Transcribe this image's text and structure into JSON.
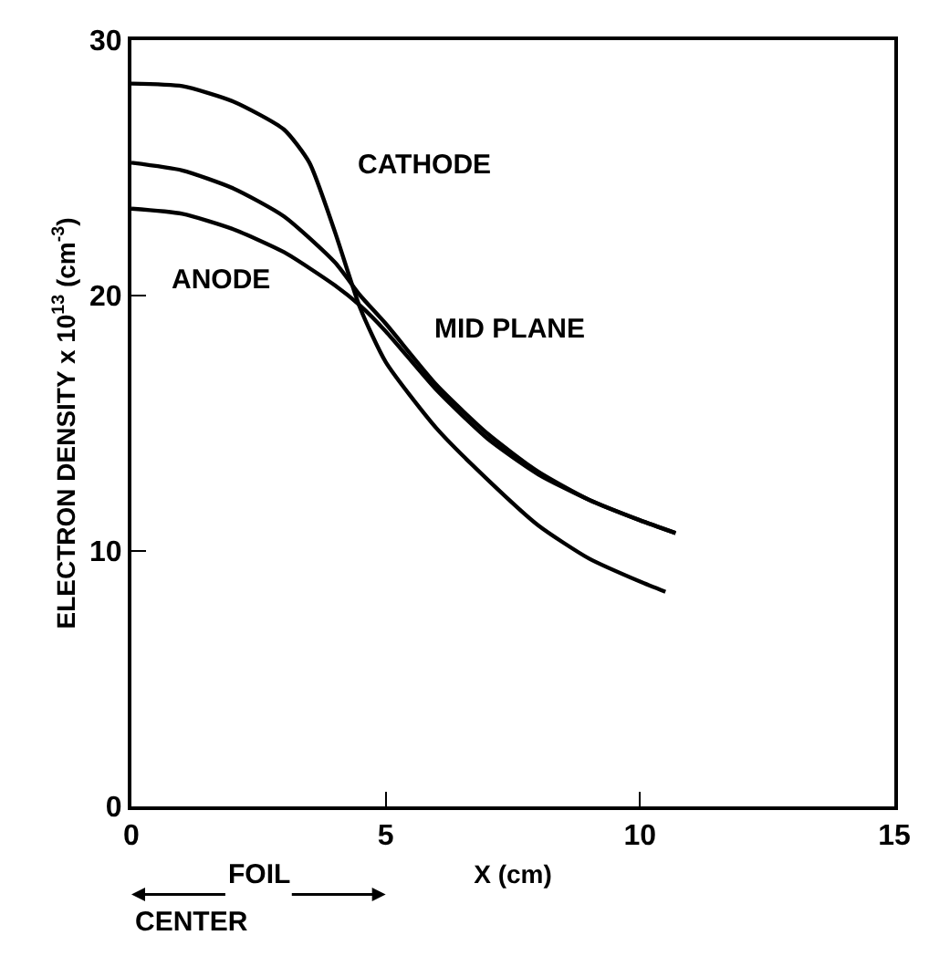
{
  "chart_data": {
    "type": "line",
    "xlabel": "X (cm)",
    "ylabel": "ELECTRON DENSITY x 10$^{13}$ (cm$^{-3}$)",
    "xlim": [
      0,
      15
    ],
    "xticks": [
      0,
      5,
      10,
      15
    ],
    "ylim": [
      0,
      30
    ],
    "yticks": [
      0,
      10,
      20,
      30
    ],
    "legend": false,
    "marker": "none",
    "line_style": "solid",
    "series": [
      {
        "name": "CATHODE",
        "color": "#000000",
        "x": [
          0,
          1,
          2,
          3,
          3.5,
          4,
          4.5,
          5,
          6,
          7,
          8,
          9,
          10,
          10.5
        ],
        "values": [
          28.3,
          28.2,
          27.6,
          26.5,
          25.2,
          22.5,
          19.5,
          17.4,
          14.8,
          12.8,
          11.0,
          9.7,
          8.8,
          8.4
        ]
      },
      {
        "name": "MID PLANE",
        "color": "#000000",
        "x": [
          0,
          1,
          2,
          3,
          4,
          4.5,
          5,
          6,
          7,
          8,
          9,
          10,
          10.7
        ],
        "values": [
          25.2,
          24.9,
          24.2,
          23.1,
          21.3,
          20.0,
          18.9,
          16.5,
          14.6,
          13.1,
          12.0,
          11.2,
          10.7
        ]
      },
      {
        "name": "ANODE",
        "color": "#000000",
        "x": [
          0,
          1,
          2,
          3,
          4,
          4.5,
          5,
          6,
          7,
          8,
          9,
          10,
          10.7
        ],
        "values": [
          23.4,
          23.2,
          22.6,
          21.7,
          20.4,
          19.6,
          18.6,
          16.3,
          14.4,
          13.0,
          12.0,
          11.2,
          10.7
        ]
      }
    ],
    "annotations": [
      "FOIL",
      "CENTER"
    ]
  }
}
